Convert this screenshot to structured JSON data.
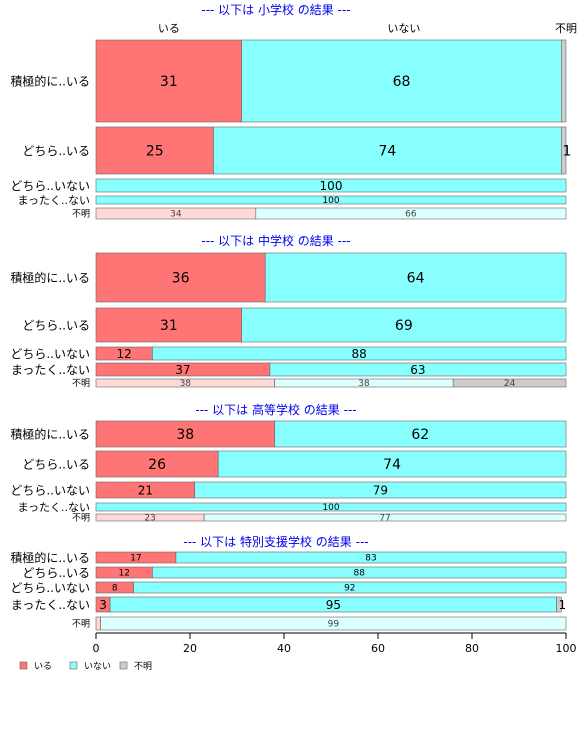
{
  "chart_data": {
    "type": "bar",
    "orientation": "horizontal",
    "stacked": "percent",
    "xlim": [
      0,
      100
    ],
    "x_ticks": [
      0,
      20,
      40,
      60,
      80,
      100
    ],
    "series_names": [
      "いる",
      "いない",
      "不明"
    ],
    "top_axis_labels": [
      "いる",
      "いない",
      "不明"
    ],
    "legend": {
      "position": "bottom-left",
      "items": [
        "いる",
        "いない",
        "不明"
      ]
    },
    "colors": {
      "iru": "#ff7575",
      "inai": "#87ffff",
      "fumei": "#cccccc",
      "fumei_iru": "#ffd8d8",
      "fumei_inai": "#dcffff",
      "header": "#0000ee"
    },
    "panels": [
      {
        "title": "--- 以下は 小学校 の結果 ---",
        "rows": [
          {
            "label": "積極的に..いる",
            "values": [
              31,
              68,
              1
            ],
            "labels": [
              "31",
              "68",
              ""
            ]
          },
          {
            "label": "どちら..いる",
            "values": [
              25,
              74,
              1
            ],
            "labels": [
              "25",
              "74",
              "1"
            ]
          },
          {
            "label": "どちら..いない",
            "values": [
              0,
              100,
              0
            ],
            "labels": [
              "",
              "100",
              ""
            ]
          },
          {
            "label": "まったく..ない",
            "values": [
              0,
              100,
              0
            ],
            "labels": [
              "",
              "100",
              ""
            ]
          },
          {
            "label": "不明",
            "values": [
              34,
              66,
              0
            ],
            "labels": [
              "34",
              "66",
              ""
            ],
            "fumei": true
          }
        ]
      },
      {
        "title": "--- 以下は 中学校 の結果 ---",
        "rows": [
          {
            "label": "積極的に..いる",
            "values": [
              36,
              64,
              0
            ],
            "labels": [
              "36",
              "64",
              ""
            ]
          },
          {
            "label": "どちら..いる",
            "values": [
              31,
              69,
              0
            ],
            "labels": [
              "31",
              "69",
              ""
            ]
          },
          {
            "label": "どちら..いない",
            "values": [
              12,
              88,
              0
            ],
            "labels": [
              "12",
              "88",
              ""
            ]
          },
          {
            "label": "まったく..ない",
            "values": [
              37,
              63,
              0
            ],
            "labels": [
              "37",
              "63",
              ""
            ]
          },
          {
            "label": "不明",
            "values": [
              38,
              38,
              24
            ],
            "labels": [
              "38",
              "38",
              "24"
            ],
            "fumei": true
          }
        ]
      },
      {
        "title": "--- 以下は 高等学校 の結果 ---",
        "rows": [
          {
            "label": "積極的に..いる",
            "values": [
              38,
              62,
              0
            ],
            "labels": [
              "38",
              "62",
              ""
            ]
          },
          {
            "label": "どちら..いる",
            "values": [
              26,
              74,
              0
            ],
            "labels": [
              "26",
              "74",
              ""
            ]
          },
          {
            "label": "どちら..いない",
            "values": [
              21,
              79,
              0
            ],
            "labels": [
              "21",
              "79",
              ""
            ]
          },
          {
            "label": "まったく..ない",
            "values": [
              0,
              100,
              0
            ],
            "labels": [
              "",
              "100",
              ""
            ]
          },
          {
            "label": "不明",
            "values": [
              23,
              77,
              0
            ],
            "labels": [
              "23",
              "77",
              ""
            ],
            "fumei": true
          }
        ]
      },
      {
        "title": "--- 以下は 特別支援学校 の結果 ---",
        "rows": [
          {
            "label": "積極的に..いる",
            "values": [
              17,
              83,
              0
            ],
            "labels": [
              "17",
              "83",
              ""
            ]
          },
          {
            "label": "どちら..いる",
            "values": [
              12,
              88,
              0
            ],
            "labels": [
              "12",
              "88",
              ""
            ]
          },
          {
            "label": "どちら..いない",
            "values": [
              8,
              92,
              0
            ],
            "labels": [
              "8",
              "92",
              ""
            ]
          },
          {
            "label": "まったく..ない",
            "values": [
              3,
              95,
              1
            ],
            "labels": [
              "3",
              "95",
              "1"
            ]
          },
          {
            "label": "不明",
            "values": [
              1,
              99,
              0
            ],
            "labels": [
              "1",
              "99",
              ""
            ],
            "fumei": true
          }
        ]
      }
    ]
  }
}
